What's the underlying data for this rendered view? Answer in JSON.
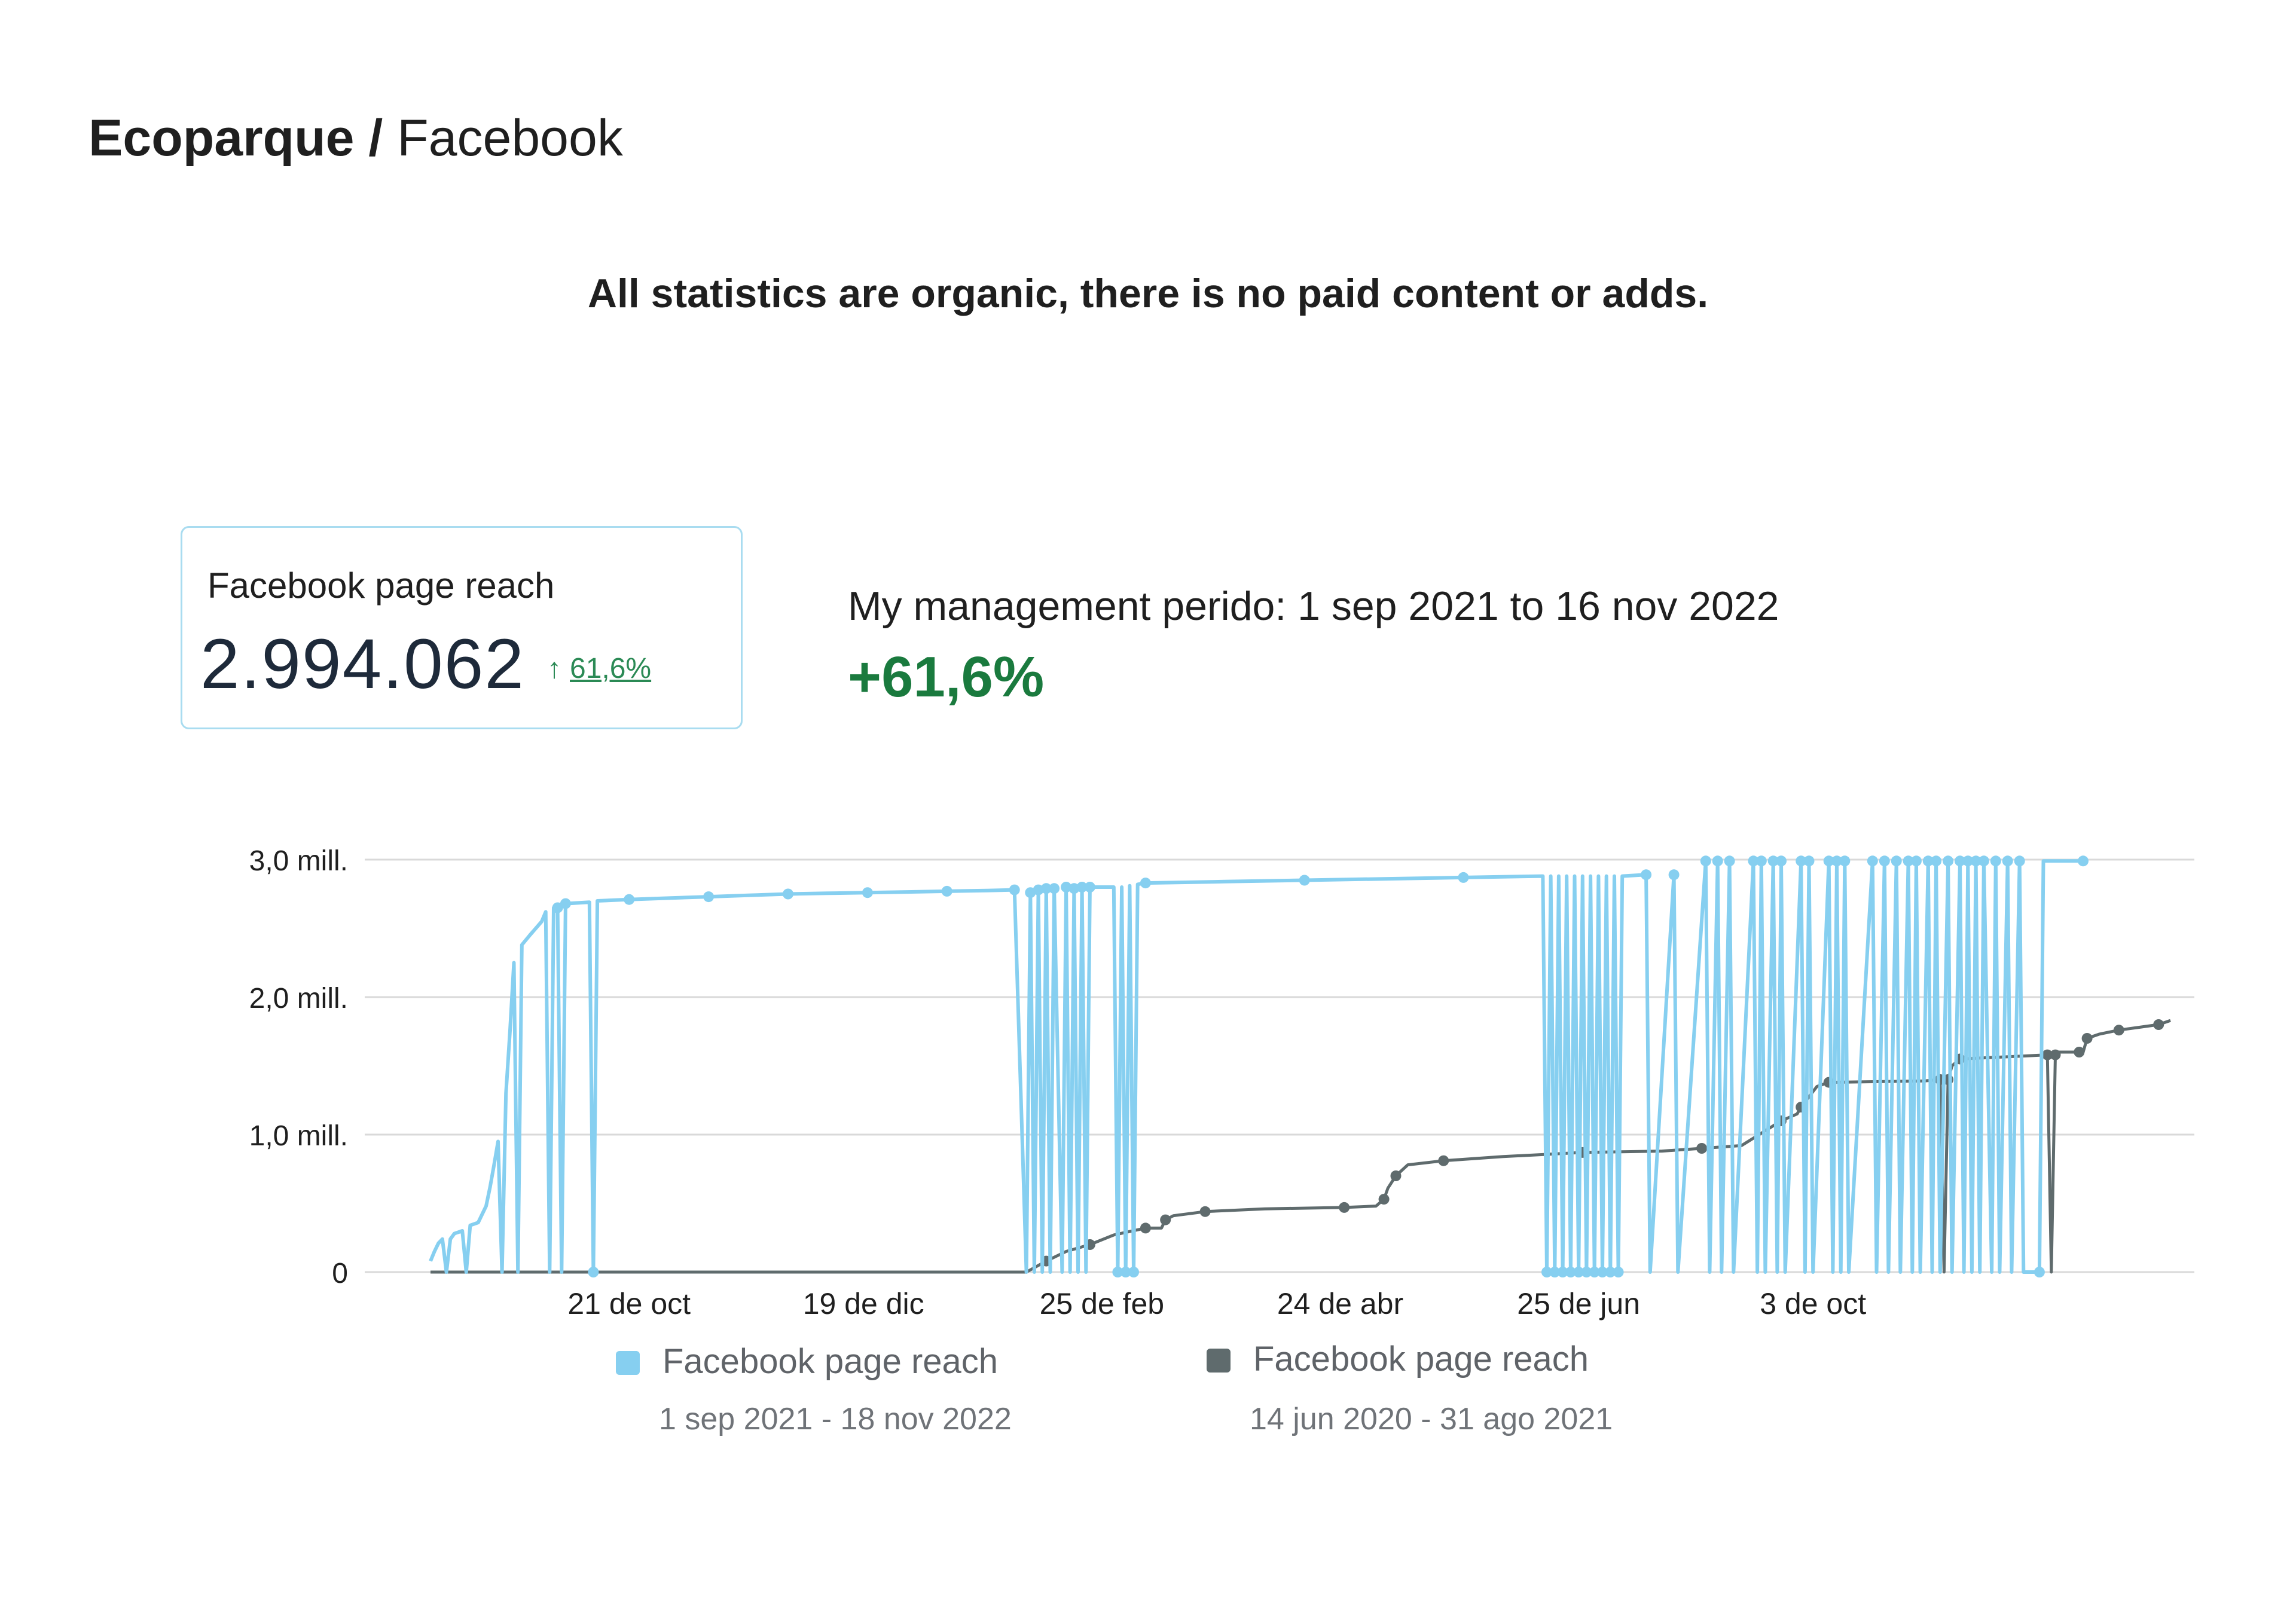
{
  "header": {
    "brand": "Ecoparque",
    "separator": " / ",
    "section": "Facebook"
  },
  "notice": "All statistics are organic, there is no paid content or adds.",
  "kpi_card": {
    "label": "Facebook page reach",
    "value": "2.994.062",
    "change_arrow": "↑",
    "change": "61,6%"
  },
  "management": {
    "text": "My management perido: 1 sep 2021 to 16 nov 2022",
    "change": "+61,6%"
  },
  "legend": [
    {
      "name": "Facebook page reach",
      "range": "1 sep 2021 - 18 nov 2022",
      "color": "#86cff0"
    },
    {
      "name": "Facebook page reach",
      "range": "14 jun 2020 - 31 ago 2021",
      "color": "#5f6b6d"
    }
  ],
  "chart_data": {
    "type": "line",
    "x_tick_labels": [
      "21 de oct",
      "19 de dic",
      "25 de feb",
      "24 de abr",
      "25 de jun",
      "3 de oct"
    ],
    "y_tick_labels": [
      "0",
      "1,0 mill.",
      "2,0 mill.",
      "3,0 mill."
    ],
    "y_ticks": [
      0,
      1000000,
      2000000,
      3000000
    ],
    "ylim": [
      0,
      3000000
    ],
    "x_units": "days since 1 sep 2021",
    "xlim": [
      0,
      444
    ],
    "x_tick_positions": [
      50,
      109,
      169,
      229,
      289,
      348
    ],
    "grid": true,
    "series": [
      {
        "name": "Facebook page reach",
        "range": "1 sep 2021 - 18 nov 2022",
        "color": "#86cff0",
        "points": [
          [
            0,
            80000
          ],
          [
            1,
            150000
          ],
          [
            2,
            210000
          ],
          [
            3,
            240000
          ],
          [
            4,
            0
          ],
          [
            5,
            240000
          ],
          [
            6,
            280000
          ],
          [
            8,
            300000
          ],
          [
            9,
            0
          ],
          [
            10,
            340000
          ],
          [
            12,
            360000
          ],
          [
            14,
            480000
          ],
          [
            15,
            620000
          ],
          [
            16,
            780000
          ],
          [
            17,
            950000
          ],
          [
            18,
            0
          ],
          [
            19,
            1300000
          ],
          [
            20,
            1750000
          ],
          [
            21,
            2250000
          ],
          [
            22,
            0
          ],
          [
            23,
            2380000
          ],
          [
            25,
            2450000
          ],
          [
            28,
            2550000
          ],
          [
            29,
            2620000
          ],
          [
            30,
            0
          ],
          [
            31,
            2650000
          ],
          [
            32,
            2650000
          ],
          [
            33,
            0
          ],
          [
            34,
            2680000
          ],
          [
            40,
            2690000
          ],
          [
            41,
            0
          ],
          [
            42,
            2700000
          ],
          [
            50,
            2710000
          ],
          [
            60,
            2720000
          ],
          [
            70,
            2730000
          ],
          [
            80,
            2740000
          ],
          [
            90,
            2750000
          ],
          [
            100,
            2755000
          ],
          [
            110,
            2760000
          ],
          [
            120,
            2765000
          ],
          [
            130,
            2770000
          ],
          [
            140,
            2775000
          ],
          [
            147,
            2780000
          ],
          [
            150,
            0
          ],
          [
            151,
            2760000
          ],
          [
            152,
            0
          ],
          [
            153,
            2780000
          ],
          [
            154,
            0
          ],
          [
            155,
            2790000
          ],
          [
            156,
            0
          ],
          [
            157,
            2790000
          ],
          [
            159,
            0
          ],
          [
            160,
            2800000
          ],
          [
            161,
            0
          ],
          [
            162,
            2790000
          ],
          [
            163,
            0
          ],
          [
            164,
            2800000
          ],
          [
            165,
            0
          ],
          [
            166,
            2800000
          ],
          [
            172,
            2800000
          ],
          [
            173,
            0
          ],
          [
            174,
            2800000
          ],
          [
            175,
            0
          ],
          [
            176,
            2810000
          ],
          [
            177,
            0
          ],
          [
            178,
            2820000
          ],
          [
            180,
            2830000
          ],
          [
            200,
            2840000
          ],
          [
            220,
            2850000
          ],
          [
            240,
            2860000
          ],
          [
            260,
            2870000
          ],
          [
            280,
            2880000
          ],
          [
            281,
            0
          ],
          [
            282,
            2880000
          ],
          [
            283,
            0
          ],
          [
            284,
            2880000
          ],
          [
            285,
            0
          ],
          [
            286,
            2880000
          ],
          [
            287,
            0
          ],
          [
            288,
            2880000
          ],
          [
            289,
            0
          ],
          [
            290,
            2880000
          ],
          [
            291,
            0
          ],
          [
            292,
            2880000
          ],
          [
            293,
            0
          ],
          [
            294,
            2880000
          ],
          [
            295,
            0
          ],
          [
            296,
            2880000
          ],
          [
            297,
            0
          ],
          [
            298,
            2880000
          ],
          [
            299,
            0
          ],
          [
            300,
            2880000
          ],
          [
            306,
            2890000
          ],
          [
            307,
            0
          ],
          [
            313,
            2890000
          ],
          [
            314,
            0
          ],
          [
            321,
            2990000
          ],
          [
            322,
            0
          ],
          [
            324,
            2990000
          ],
          [
            325,
            0
          ],
          [
            327,
            2990000
          ],
          [
            328,
            0
          ],
          [
            333,
            2990000
          ],
          [
            334,
            0
          ],
          [
            335,
            2990000
          ],
          [
            336,
            0
          ],
          [
            338,
            2990000
          ],
          [
            339,
            0
          ],
          [
            340,
            2990000
          ],
          [
            341,
            0
          ],
          [
            345,
            2990000
          ],
          [
            346,
            0
          ],
          [
            347,
            2990000
          ],
          [
            348,
            0
          ],
          [
            352,
            2990000
          ],
          [
            353,
            0
          ],
          [
            354,
            2990000
          ],
          [
            355,
            0
          ],
          [
            356,
            2990000
          ],
          [
            357,
            0
          ],
          [
            363,
            2990000
          ],
          [
            364,
            0
          ],
          [
            366,
            2990000
          ],
          [
            367,
            0
          ],
          [
            369,
            2990000
          ],
          [
            370,
            0
          ],
          [
            372,
            2990000
          ],
          [
            373,
            0
          ],
          [
            374,
            2990000
          ],
          [
            375,
            0
          ],
          [
            377,
            2990000
          ],
          [
            378,
            0
          ],
          [
            379,
            2990000
          ],
          [
            380,
            0
          ],
          [
            382,
            2990000
          ],
          [
            383,
            0
          ],
          [
            385,
            2990000
          ],
          [
            386,
            0
          ],
          [
            387,
            2990000
          ],
          [
            388,
            0
          ],
          [
            389,
            2990000
          ],
          [
            390,
            0
          ],
          [
            391,
            2990000
          ],
          [
            393,
            0
          ],
          [
            394,
            2990000
          ],
          [
            395,
            0
          ],
          [
            397,
            2990000
          ],
          [
            398,
            0
          ],
          [
            400,
            2990000
          ],
          [
            401,
            0
          ],
          [
            405,
            0
          ],
          [
            406,
            2990000
          ],
          [
            416,
            2990000
          ]
        ]
      },
      {
        "name": "Facebook page reach",
        "range": "14 jun 2020 - 31 ago 2021",
        "color": "#5f6b6d",
        "points": [
          [
            0,
            0
          ],
          [
            150,
            0
          ],
          [
            155,
            80000
          ],
          [
            160,
            150000
          ],
          [
            166,
            200000
          ],
          [
            172,
            270000
          ],
          [
            180,
            320000
          ],
          [
            184,
            320000
          ],
          [
            185,
            380000
          ],
          [
            187,
            410000
          ],
          [
            195,
            440000
          ],
          [
            210,
            460000
          ],
          [
            230,
            470000
          ],
          [
            238,
            480000
          ],
          [
            240,
            530000
          ],
          [
            241,
            610000
          ],
          [
            243,
            700000
          ],
          [
            246,
            780000
          ],
          [
            255,
            810000
          ],
          [
            270,
            840000
          ],
          [
            290,
            870000
          ],
          [
            310,
            880000
          ],
          [
            320,
            900000
          ],
          [
            330,
            920000
          ],
          [
            340,
            1100000
          ],
          [
            344,
            1150000
          ],
          [
            345,
            1200000
          ],
          [
            349,
            1350000
          ],
          [
            352,
            1380000
          ],
          [
            376,
            1390000
          ],
          [
            380,
            1400000
          ],
          [
            381,
            0
          ],
          [
            382,
            1400000
          ],
          [
            383,
            1500000
          ],
          [
            385,
            1550000
          ],
          [
            400,
            1570000
          ],
          [
            407,
            1580000
          ],
          [
            408,
            0
          ],
          [
            409,
            1580000
          ],
          [
            410,
            1600000
          ],
          [
            415,
            1600000
          ],
          [
            416,
            1600000
          ],
          [
            417,
            1700000
          ],
          [
            420,
            1730000
          ],
          [
            425,
            1760000
          ],
          [
            430,
            1780000
          ],
          [
            435,
            1800000
          ],
          [
            438,
            1830000
          ]
        ]
      }
    ]
  }
}
